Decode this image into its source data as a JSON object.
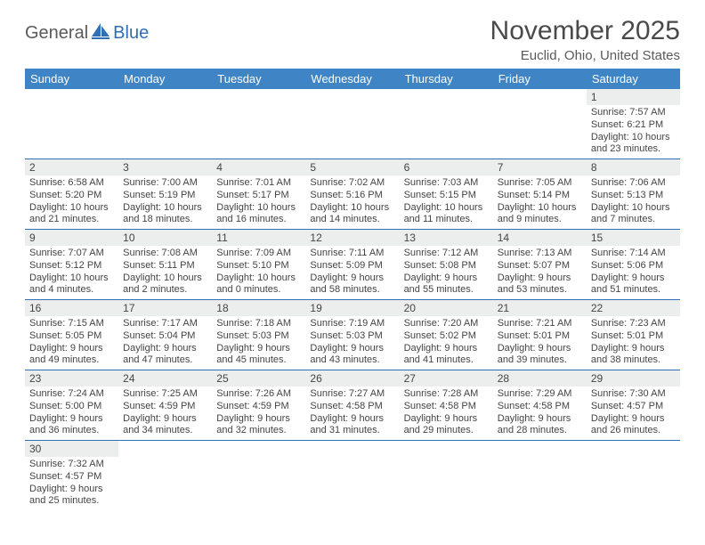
{
  "brand": {
    "part1": "General",
    "part2": "Blue"
  },
  "title": "November 2025",
  "location": "Euclid, Ohio, United States",
  "colors": {
    "header_bg": "#3f84c4",
    "header_text": "#ffffff",
    "daynum_bg": "#eceded",
    "row_border": "#2e6fb5",
    "brand_gray": "#5a5a5a",
    "brand_blue": "#2e6fb5"
  },
  "weekdays": [
    "Sunday",
    "Monday",
    "Tuesday",
    "Wednesday",
    "Thursday",
    "Friday",
    "Saturday"
  ],
  "first_weekday_index": 6,
  "days": [
    {
      "n": 1,
      "sunrise": "7:57 AM",
      "sunset": "6:21 PM",
      "daylight": "10 hours and 23 minutes."
    },
    {
      "n": 2,
      "sunrise": "6:58 AM",
      "sunset": "5:20 PM",
      "daylight": "10 hours and 21 minutes."
    },
    {
      "n": 3,
      "sunrise": "7:00 AM",
      "sunset": "5:19 PM",
      "daylight": "10 hours and 18 minutes."
    },
    {
      "n": 4,
      "sunrise": "7:01 AM",
      "sunset": "5:17 PM",
      "daylight": "10 hours and 16 minutes."
    },
    {
      "n": 5,
      "sunrise": "7:02 AM",
      "sunset": "5:16 PM",
      "daylight": "10 hours and 14 minutes."
    },
    {
      "n": 6,
      "sunrise": "7:03 AM",
      "sunset": "5:15 PM",
      "daylight": "10 hours and 11 minutes."
    },
    {
      "n": 7,
      "sunrise": "7:05 AM",
      "sunset": "5:14 PM",
      "daylight": "10 hours and 9 minutes."
    },
    {
      "n": 8,
      "sunrise": "7:06 AM",
      "sunset": "5:13 PM",
      "daylight": "10 hours and 7 minutes."
    },
    {
      "n": 9,
      "sunrise": "7:07 AM",
      "sunset": "5:12 PM",
      "daylight": "10 hours and 4 minutes."
    },
    {
      "n": 10,
      "sunrise": "7:08 AM",
      "sunset": "5:11 PM",
      "daylight": "10 hours and 2 minutes."
    },
    {
      "n": 11,
      "sunrise": "7:09 AM",
      "sunset": "5:10 PM",
      "daylight": "10 hours and 0 minutes."
    },
    {
      "n": 12,
      "sunrise": "7:11 AM",
      "sunset": "5:09 PM",
      "daylight": "9 hours and 58 minutes."
    },
    {
      "n": 13,
      "sunrise": "7:12 AM",
      "sunset": "5:08 PM",
      "daylight": "9 hours and 55 minutes."
    },
    {
      "n": 14,
      "sunrise": "7:13 AM",
      "sunset": "5:07 PM",
      "daylight": "9 hours and 53 minutes."
    },
    {
      "n": 15,
      "sunrise": "7:14 AM",
      "sunset": "5:06 PM",
      "daylight": "9 hours and 51 minutes."
    },
    {
      "n": 16,
      "sunrise": "7:15 AM",
      "sunset": "5:05 PM",
      "daylight": "9 hours and 49 minutes."
    },
    {
      "n": 17,
      "sunrise": "7:17 AM",
      "sunset": "5:04 PM",
      "daylight": "9 hours and 47 minutes."
    },
    {
      "n": 18,
      "sunrise": "7:18 AM",
      "sunset": "5:03 PM",
      "daylight": "9 hours and 45 minutes."
    },
    {
      "n": 19,
      "sunrise": "7:19 AM",
      "sunset": "5:03 PM",
      "daylight": "9 hours and 43 minutes."
    },
    {
      "n": 20,
      "sunrise": "7:20 AM",
      "sunset": "5:02 PM",
      "daylight": "9 hours and 41 minutes."
    },
    {
      "n": 21,
      "sunrise": "7:21 AM",
      "sunset": "5:01 PM",
      "daylight": "9 hours and 39 minutes."
    },
    {
      "n": 22,
      "sunrise": "7:23 AM",
      "sunset": "5:01 PM",
      "daylight": "9 hours and 38 minutes."
    },
    {
      "n": 23,
      "sunrise": "7:24 AM",
      "sunset": "5:00 PM",
      "daylight": "9 hours and 36 minutes."
    },
    {
      "n": 24,
      "sunrise": "7:25 AM",
      "sunset": "4:59 PM",
      "daylight": "9 hours and 34 minutes."
    },
    {
      "n": 25,
      "sunrise": "7:26 AM",
      "sunset": "4:59 PM",
      "daylight": "9 hours and 32 minutes."
    },
    {
      "n": 26,
      "sunrise": "7:27 AM",
      "sunset": "4:58 PM",
      "daylight": "9 hours and 31 minutes."
    },
    {
      "n": 27,
      "sunrise": "7:28 AM",
      "sunset": "4:58 PM",
      "daylight": "9 hours and 29 minutes."
    },
    {
      "n": 28,
      "sunrise": "7:29 AM",
      "sunset": "4:58 PM",
      "daylight": "9 hours and 28 minutes."
    },
    {
      "n": 29,
      "sunrise": "7:30 AM",
      "sunset": "4:57 PM",
      "daylight": "9 hours and 26 minutes."
    },
    {
      "n": 30,
      "sunrise": "7:32 AM",
      "sunset": "4:57 PM",
      "daylight": "9 hours and 25 minutes."
    }
  ],
  "labels": {
    "sunrise": "Sunrise:",
    "sunset": "Sunset:",
    "daylight": "Daylight:"
  }
}
